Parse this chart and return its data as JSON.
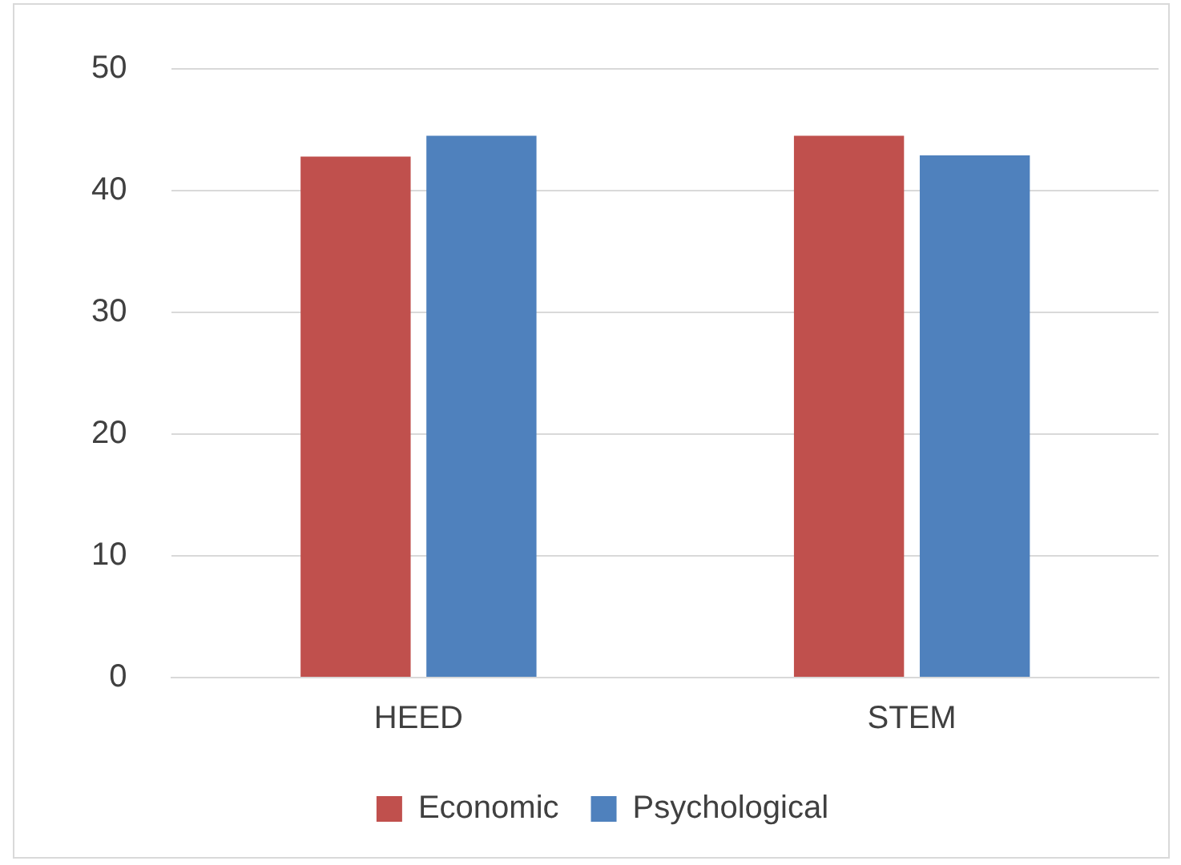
{
  "chart_data": {
    "type": "bar",
    "categories": [
      "HEED",
      "STEM"
    ],
    "series": [
      {
        "name": "Economic",
        "color": "#c0504d",
        "values": [
          42.8,
          44.5
        ]
      },
      {
        "name": "Psychological",
        "color": "#4f81bd",
        "values": [
          44.5,
          42.9
        ]
      }
    ],
    "ylim": [
      0,
      50
    ],
    "yticks": [
      0,
      10,
      20,
      30,
      40,
      50
    ],
    "grid": "y",
    "legend": "bottom"
  }
}
